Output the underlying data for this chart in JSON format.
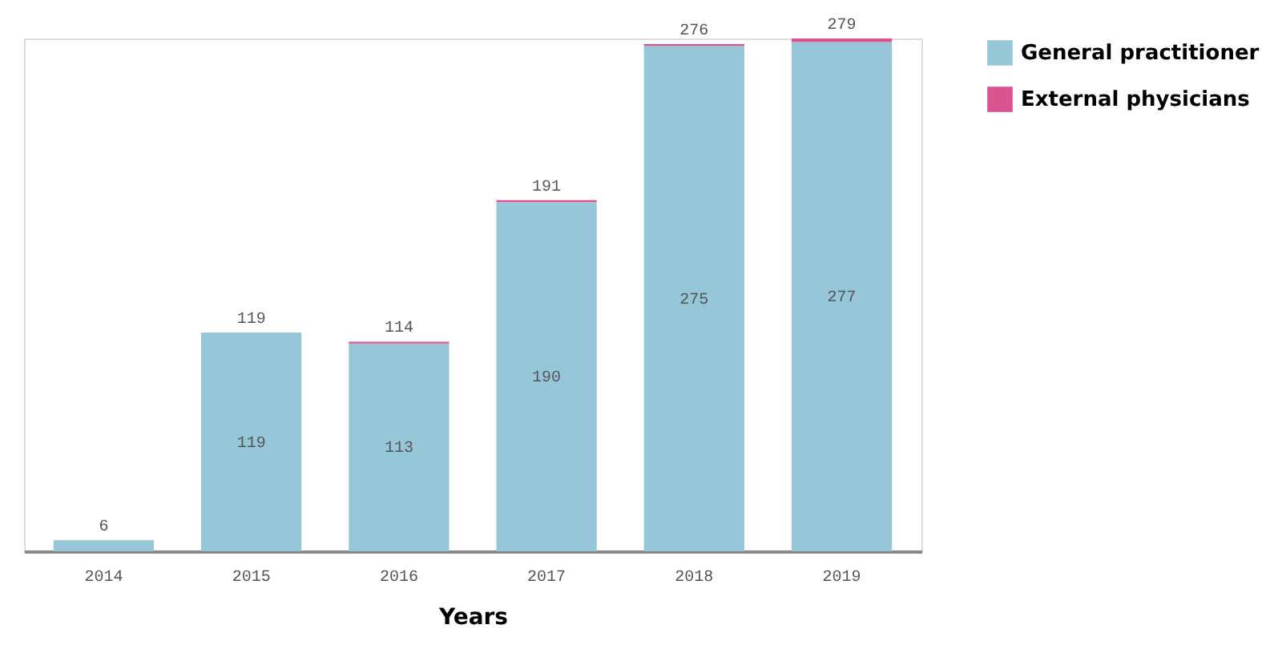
{
  "chart_data": {
    "type": "bar",
    "stacked": true,
    "xlabel": "Years",
    "categories": [
      "2014",
      "2015",
      "2016",
      "2017",
      "2018",
      "2019"
    ],
    "series": [
      {
        "name": "General practitioner",
        "color": "#96c7d9",
        "values": [
          6,
          119,
          113,
          190,
          275,
          277
        ],
        "value_labels": [
          null,
          "119",
          "113",
          "190",
          "275",
          "277"
        ]
      },
      {
        "name": "External physicians",
        "color": "#d9548f",
        "values": [
          0,
          0,
          1,
          1,
          1,
          2
        ]
      }
    ],
    "totals": [
      "6",
      "119",
      "114",
      "191",
      "276",
      "279"
    ],
    "legend": "top right",
    "grid": false
  }
}
